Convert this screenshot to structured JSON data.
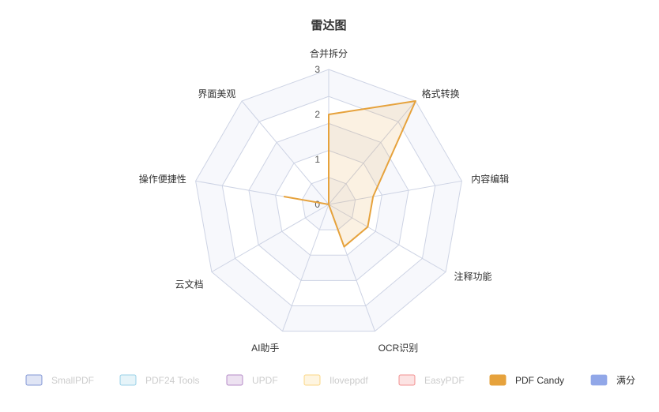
{
  "chart_data": {
    "type": "radar",
    "title": "雷达图",
    "indicators": [
      "合并拆分",
      "格式转换",
      "内容编辑",
      "注释功能",
      "OCR识别",
      "AI助手",
      "云文档",
      "操作便捷性",
      "界面美观"
    ],
    "max": 3,
    "ticks": [
      "0",
      "1",
      "2",
      "3"
    ],
    "series": [
      {
        "name": "SmallPDF",
        "color": "#5470c6",
        "visible": false,
        "values": []
      },
      {
        "name": "PDF24 Tools",
        "color": "#73c0de",
        "visible": false,
        "values": []
      },
      {
        "name": "UPDF",
        "color": "#9a60b4",
        "visible": false,
        "values": []
      },
      {
        "name": "Iloveppdf",
        "color": "#fac858",
        "visible": false,
        "values": []
      },
      {
        "name": "EasyPDF",
        "color": "#ee6666",
        "visible": false,
        "values": []
      },
      {
        "name": "PDF Candy",
        "color": "#e6a23c",
        "visible": true,
        "values": [
          2,
          3,
          1,
          1,
          1,
          0,
          0,
          1,
          0
        ]
      },
      {
        "name": "满分",
        "color": "#91a7e8",
        "visible": false,
        "values": []
      }
    ],
    "legend_position": "bottom",
    "grid_color": "#cdd3e4",
    "area_fill": "#f7f8fc"
  }
}
